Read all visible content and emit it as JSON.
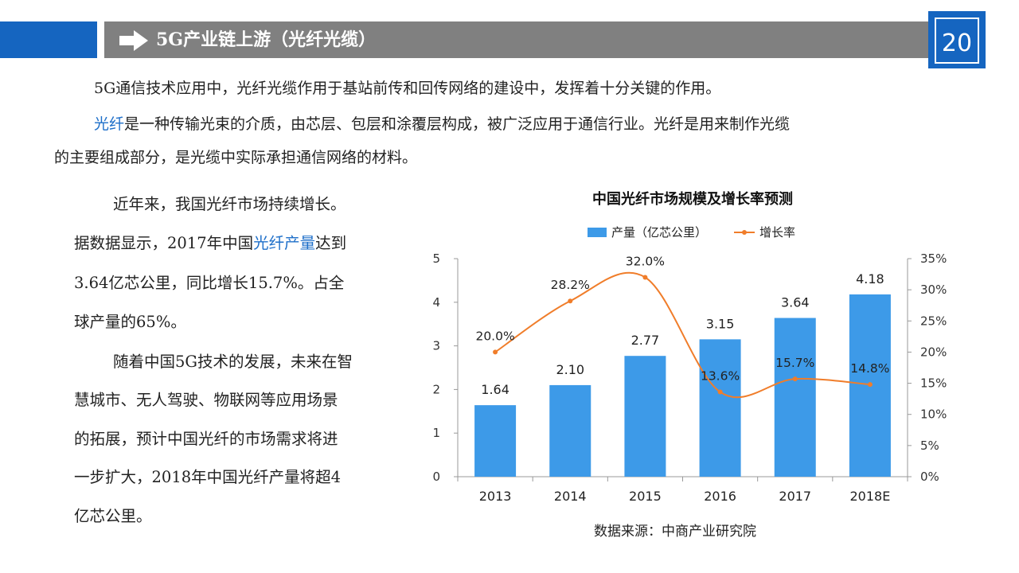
{
  "header": {
    "title": "5G产业链上游（光纤光缆）",
    "page_number": "20"
  },
  "intro": {
    "line1": "5G通信技术应用中，光纤光缆作用于基站前传和回传网络的建设中，发挥着十分关键的作用。",
    "line2_highlight": "光纤",
    "line2_rest": "是一种传输光束的介质，由芯层、包层和涂覆层构成，被广泛应用于通信行业。光纤是用来制作光缆",
    "line3": "的主要组成部分，是光缆中实际承担通信网络的材料。"
  },
  "left_text": {
    "l1": "近年来，我国光纤市场持续增长。",
    "l2_a": "据数据显示，2017年中国",
    "l2_highlight": "光纤产量",
    "l2_b": "达到",
    "l3": "3.64亿芯公里，同比增长15.7%。占全",
    "l4": "球产量的65%。",
    "l5": "随着中国5G技术的发展，未来在智",
    "l6": "慧城市、无人驾驶、物联网等应用场景",
    "l7": "的拓展，预计中国光纤的市场需求将进",
    "l8": "一步扩大，2018年中国光纤产量将超4",
    "l9": "亿芯公里。"
  },
  "colors": {
    "header_blue": "#1565c0",
    "header_gray": "#808080",
    "highlight_text": "#1e6fc9",
    "bar": "#3d9ae8",
    "line": "#f07d2a"
  },
  "chart_data": {
    "type": "bar",
    "title": "中国光纤市场规模及增长率预测",
    "categories": [
      "2013",
      "2014",
      "2015",
      "2016",
      "2017",
      "2018E"
    ],
    "series": [
      {
        "name": "产量（亿芯公里）",
        "type": "bar",
        "axis": "left",
        "values": [
          1.64,
          2.1,
          2.77,
          3.15,
          3.64,
          4.18
        ],
        "labels": [
          "1.64",
          "2.10",
          "2.77",
          "3.15",
          "3.64",
          "4.18"
        ]
      },
      {
        "name": "增长率",
        "type": "line",
        "axis": "right",
        "values": [
          20.0,
          28.2,
          32.0,
          13.6,
          15.7,
          14.8
        ],
        "labels": [
          "20.0%",
          "28.2%",
          "32.0%",
          "13.6%",
          "15.7%",
          "14.8%"
        ]
      }
    ],
    "y_left": {
      "ylim": [
        0,
        5
      ],
      "ticks": [
        "0",
        "1",
        "2",
        "3",
        "4",
        "5"
      ]
    },
    "y_right": {
      "ylim": [
        0,
        35
      ],
      "ticks": [
        "0%",
        "5%",
        "10%",
        "15%",
        "20%",
        "25%",
        "30%",
        "35%"
      ]
    },
    "legend_position": "top",
    "grid": false,
    "source": "数据来源：中商产业研究院"
  }
}
